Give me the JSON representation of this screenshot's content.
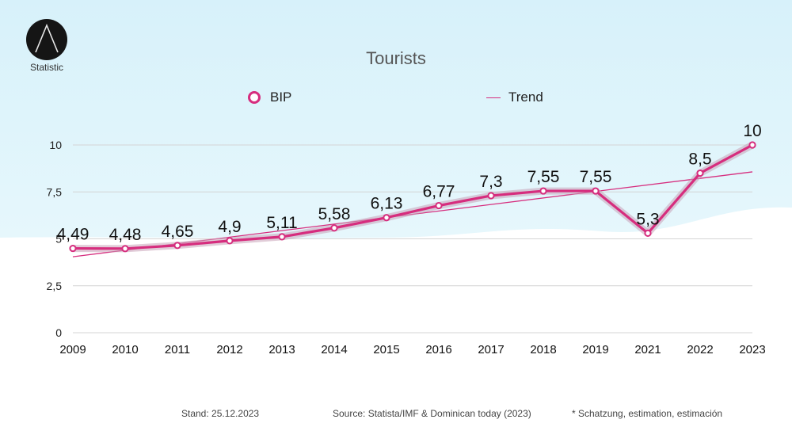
{
  "logo": {
    "label": "Statistic",
    "icon": "triangle-outline-icon"
  },
  "colors": {
    "series": "#d62d7e",
    "background_wave": "#dff5fb",
    "grid": "#d4d4d4"
  },
  "footer": {
    "stand": "Stand: 25.12.2023",
    "source": "Source: Statista/IMF & Dominican today (2023)",
    "note": "* Schatzung, estimation, estimación"
  },
  "chart_data": {
    "type": "line",
    "title": "Tourists",
    "xlabel": "",
    "ylabel": "",
    "categories": [
      "2009",
      "2010",
      "2011",
      "2012",
      "2013",
      "2014",
      "2015",
      "2016",
      "2017",
      "2018",
      "2019",
      "2021",
      "2022",
      "2023"
    ],
    "series": [
      {
        "name": "BIP",
        "values": [
          4.49,
          4.48,
          4.65,
          4.9,
          5.11,
          5.58,
          6.13,
          6.77,
          7.3,
          7.55,
          7.55,
          5.3,
          8.5,
          10
        ],
        "labels": [
          "4,49",
          "4,48",
          "4,65",
          "4,9",
          "5,11",
          "5,58",
          "6,13",
          "6,77",
          "7,3",
          "7,55",
          "7,55",
          "5,3",
          "8,5",
          "10"
        ]
      },
      {
        "name": "Trend",
        "kind": "linear-trendline"
      }
    ],
    "yticks": [
      0,
      2.5,
      5,
      7.5,
      10
    ],
    "ytick_labels": [
      "0",
      "2,5",
      "5",
      "7,5",
      "10"
    ],
    "ylim": [
      0,
      10
    ],
    "grid": true,
    "legend": "top-center"
  }
}
